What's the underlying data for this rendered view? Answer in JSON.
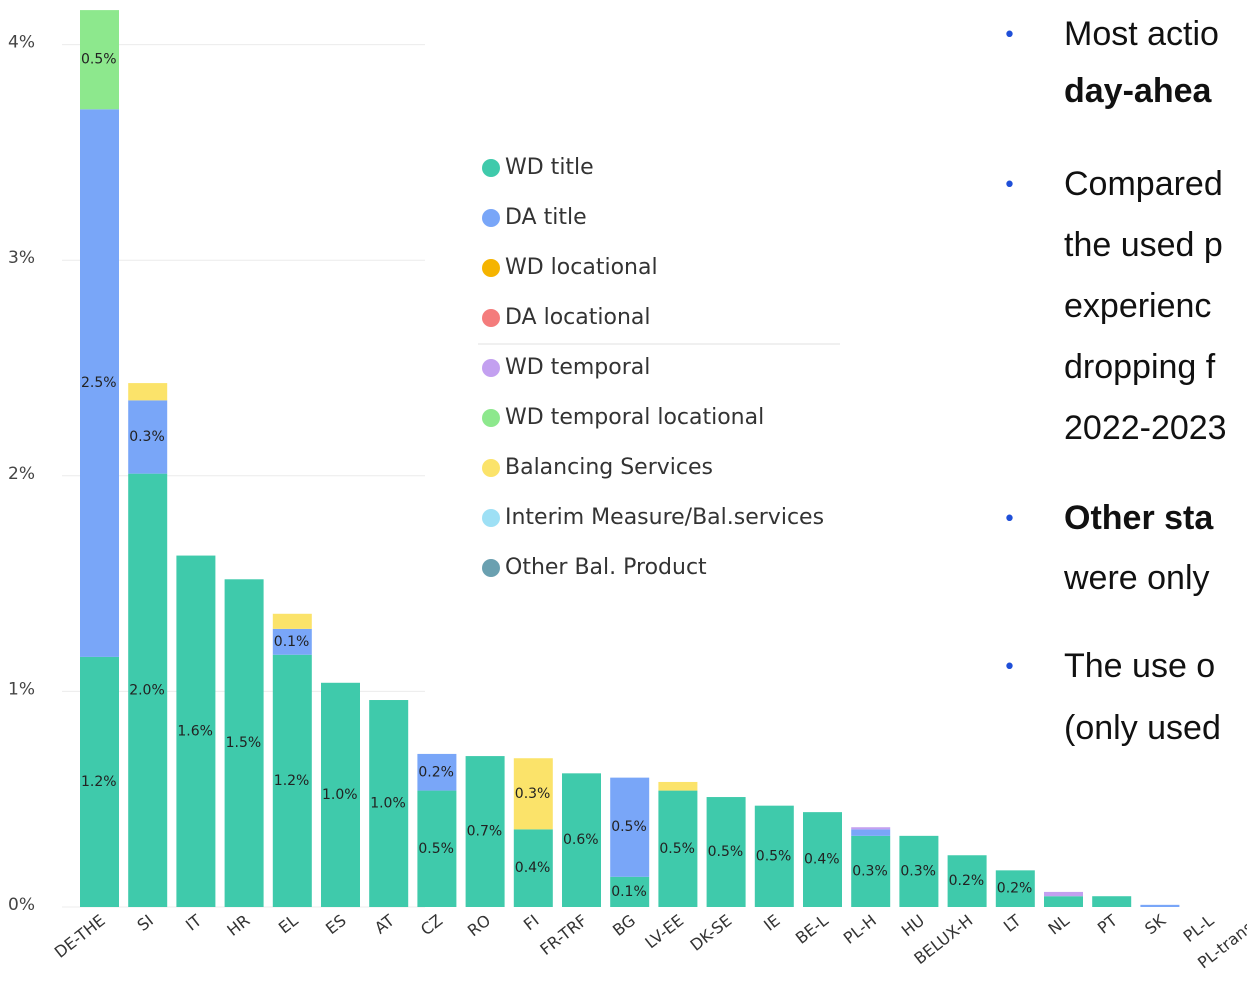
{
  "chart_data": {
    "type": "stacked_bar",
    "categories": [
      "DE-THE",
      "SI",
      "IT",
      "HR",
      "EL",
      "ES",
      "AT",
      "CZ",
      "RO",
      "FI",
      "FR-TRF",
      "BG",
      "LV-EE",
      "DK-SE",
      "IE",
      "BE-L",
      "PL-H",
      "HU",
      "BELUX-H",
      "LT",
      "NL",
      "PT",
      "SK",
      "PL-L",
      "PL-transit"
    ],
    "series": [
      {
        "name": "WD title",
        "color": "#3fcaab",
        "values": [
          1.16,
          2.01,
          1.63,
          1.52,
          1.17,
          1.04,
          0.96,
          0.54,
          0.7,
          0.36,
          0.62,
          0.14,
          0.54,
          0.51,
          0.47,
          0.44,
          0.33,
          0.33,
          0.24,
          0.17,
          0.05,
          0.05,
          0,
          0,
          0
        ],
        "value_labels": [
          "1.2%",
          "2.0%",
          "1.6%",
          "1.5%",
          "1.2%",
          "1.0%",
          "1.0%",
          "0.5%",
          "0.7%",
          "0.4%",
          "0.6%",
          "0.1%",
          "0.5%",
          "0.5%",
          "0.5%",
          "0.4%",
          "0.3%",
          "0.3%",
          "0.2%",
          "0.2%",
          null,
          null,
          null,
          null,
          null
        ]
      },
      {
        "name": "DA title",
        "color": "#79a6f8",
        "values": [
          2.54,
          0.34,
          0,
          0,
          0.12,
          0,
          0,
          0.17,
          0,
          0,
          0,
          0.46,
          0,
          0,
          0,
          0,
          0.03,
          0,
          0,
          0,
          0,
          0,
          0.01,
          0,
          0
        ],
        "value_labels": [
          "2.5%",
          "0.3%",
          null,
          null,
          "0.1%",
          null,
          null,
          "0.2%",
          null,
          null,
          null,
          "0.5%",
          null,
          null,
          null,
          null,
          null,
          null,
          null,
          null,
          null,
          null,
          null,
          null,
          null
        ]
      },
      {
        "name": "WD locational",
        "color": "#f5b400",
        "values": [
          0,
          0,
          0,
          0,
          0,
          0,
          0,
          0,
          0,
          0,
          0,
          0,
          0,
          0,
          0,
          0,
          0,
          0,
          0,
          0,
          0,
          0,
          0,
          0,
          0
        ]
      },
      {
        "name": "DA locational",
        "color": "#f47c7c",
        "values": [
          0,
          0,
          0,
          0,
          0,
          0,
          0,
          0,
          0,
          0,
          0,
          0,
          0,
          0,
          0,
          0,
          0,
          0,
          0,
          0,
          0,
          0,
          0,
          0,
          0
        ]
      },
      {
        "name": "WD temporal",
        "color": "#c3a0f0",
        "values": [
          0,
          0,
          0,
          0,
          0,
          0,
          0,
          0,
          0,
          0,
          0,
          0,
          0,
          0,
          0,
          0,
          0.01,
          0,
          0,
          0,
          0.02,
          0,
          0,
          0,
          0
        ]
      },
      {
        "name": "WD temporal locational",
        "color": "#8de88d",
        "values": [
          0.46,
          0,
          0,
          0,
          0,
          0,
          0,
          0,
          0,
          0,
          0,
          0,
          0,
          0,
          0,
          0,
          0,
          0,
          0,
          0,
          0,
          0,
          0,
          0,
          0
        ],
        "value_labels": [
          "0.5%",
          null,
          null,
          null,
          null,
          null,
          null,
          null,
          null,
          null,
          null,
          null,
          null,
          null,
          null,
          null,
          null,
          null,
          null,
          null,
          null,
          null,
          null,
          null,
          null
        ]
      },
      {
        "name": "Balancing Services",
        "color": "#fbe36a",
        "values": [
          0,
          0.08,
          0,
          0,
          0.07,
          0,
          0,
          0,
          0,
          0.33,
          0,
          0,
          0.04,
          0,
          0,
          0,
          0,
          0,
          0,
          0,
          0,
          0,
          0,
          0,
          0
        ],
        "value_labels": [
          null,
          null,
          null,
          null,
          null,
          null,
          null,
          null,
          null,
          "0.3%",
          null,
          null,
          null,
          null,
          null,
          null,
          null,
          null,
          null,
          null,
          null,
          null,
          null,
          null,
          null
        ]
      },
      {
        "name": "Interim Measure/Bal.services",
        "color": "#9ee0f5",
        "values": [
          0,
          0,
          0,
          0,
          0,
          0,
          0,
          0,
          0,
          0,
          0,
          0,
          0,
          0,
          0,
          0,
          0,
          0,
          0,
          0,
          0,
          0,
          0,
          0,
          0
        ]
      },
      {
        "name": "Other Bal. Product",
        "color": "#6aa0b0",
        "values": [
          0,
          0,
          0,
          0,
          0,
          0,
          0,
          0,
          0,
          0,
          0,
          0,
          0,
          0,
          0,
          0,
          0,
          0,
          0,
          0,
          0,
          0,
          0,
          0,
          0
        ]
      }
    ],
    "ylim": [
      0,
      4.2
    ],
    "yticks": [
      {
        "value": 0,
        "label": "0%"
      },
      {
        "value": 1,
        "label": "1%"
      },
      {
        "value": 2,
        "label": "2%"
      },
      {
        "value": 3,
        "label": "3%"
      },
      {
        "value": 4,
        "label": "4%"
      }
    ],
    "grid": true
  },
  "bullets": [
    [
      {
        "text": "Most actio",
        "bold": false
      },
      {
        "text": "day-ahea",
        "bold": true
      }
    ],
    [
      {
        "text": "Compared",
        "bold": false
      },
      {
        "text": "the used p",
        "bold": false
      },
      {
        "text": "experienc",
        "bold": false
      },
      {
        "text": "dropping f",
        "bold": false
      },
      {
        "text": "2022-2023",
        "bold": false
      }
    ],
    [
      {
        "text": "Other sta",
        "bold": true
      },
      {
        "text": "were only",
        "bold": false
      }
    ],
    [
      {
        "text": "The use o",
        "bold": false
      },
      {
        "text": "(only used",
        "bold": false
      }
    ]
  ]
}
